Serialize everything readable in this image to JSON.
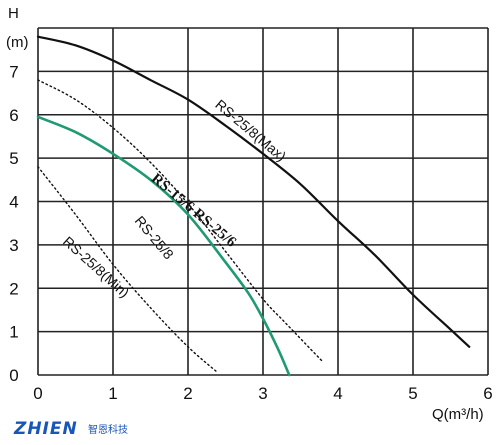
{
  "chart_data": {
    "type": "line",
    "xlabel": "Q(m³/h)",
    "ylabel_top": "H",
    "ylabel_unit": "(m)",
    "xlim": [
      0,
      6
    ],
    "ylim": [
      0,
      8
    ],
    "grid": true,
    "x_ticks": [
      "0",
      "1",
      "2",
      "3",
      "4",
      "5",
      "6"
    ],
    "y_ticks": [
      "0",
      "1",
      "2",
      "3",
      "4",
      "5",
      "6",
      "7"
    ],
    "series": [
      {
        "name": "RS-25/8(Max)",
        "style": "solid",
        "color": "#111111",
        "x": [
          0,
          0.5,
          1,
          1.5,
          2,
          2.5,
          3,
          3.5,
          4,
          4.5,
          5,
          5.5,
          5.75
        ],
        "y": [
          7.8,
          7.6,
          7.25,
          6.8,
          6.35,
          5.75,
          5.1,
          4.4,
          3.55,
          2.75,
          1.85,
          1.05,
          0.65
        ]
      },
      {
        "name": "RS-15/6 RS-25/6",
        "style": "solid",
        "color": "#1f9a72",
        "x": [
          0,
          0.5,
          1,
          1.5,
          2,
          2.5,
          2.8,
          3.0,
          3.2,
          3.35
        ],
        "y": [
          5.95,
          5.6,
          5.1,
          4.5,
          3.7,
          2.6,
          1.9,
          1.3,
          0.6,
          0.0
        ]
      },
      {
        "name": "RS-25/8",
        "style": "dotted",
        "color": "#111111",
        "x": [
          0,
          0.5,
          1,
          1.5,
          2,
          2.5,
          3,
          3.3,
          3.8
        ],
        "y": [
          6.8,
          6.35,
          5.7,
          4.9,
          3.95,
          2.85,
          1.75,
          1.2,
          0.3
        ]
      },
      {
        "name": "RS-25/8(Min)",
        "style": "dotted",
        "color": "#111111",
        "x": [
          0,
          0.5,
          1,
          1.5,
          2,
          2.4
        ],
        "y": [
          4.8,
          3.7,
          2.55,
          1.55,
          0.65,
          0.05
        ]
      }
    ],
    "annotations": [
      {
        "text": "RS-25/8(Max)",
        "x": 2.35,
        "y": 6.2,
        "angle": 40,
        "style": "normal"
      },
      {
        "text": "RS-15/6 RS-25/6",
        "x": 1.5,
        "y": 4.5,
        "angle": 40,
        "style": "bold"
      },
      {
        "text": "RS-25/8",
        "x": 1.28,
        "y": 3.55,
        "angle": 50,
        "style": "normal"
      },
      {
        "text": "RS-25/8(Min)",
        "x": 0.32,
        "y": 3.05,
        "angle": 42,
        "style": "normal"
      }
    ]
  },
  "watermark": {
    "brand": "ZHIEN",
    "sub": "智恩科技"
  }
}
